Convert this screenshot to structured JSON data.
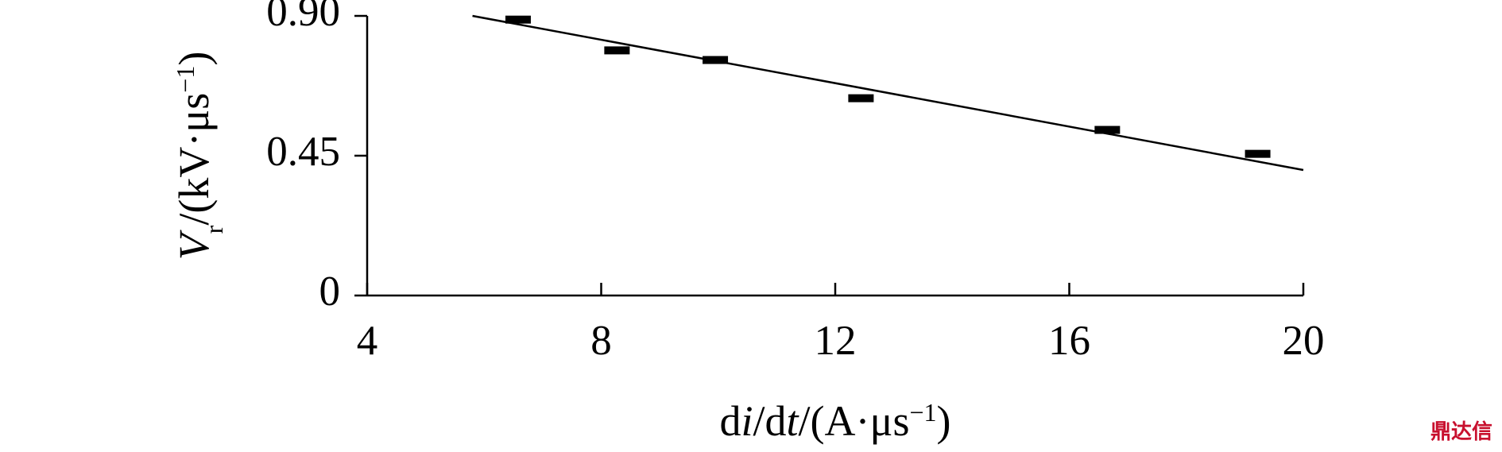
{
  "chart_data": {
    "type": "scatter",
    "x": [
      6.58,
      8.27,
      9.95,
      12.44,
      16.65,
      19.22
    ],
    "values": [
      0.888,
      0.789,
      0.758,
      0.635,
      0.533,
      0.456
    ],
    "color": "#000000",
    "fit_line": {
      "x": [
        5.8,
        20
      ],
      "values": [
        0.9,
        0.404
      ]
    },
    "xlim": [
      4,
      20
    ],
    "xticks": [
      4,
      8,
      12,
      16,
      20
    ],
    "ylim": [
      0,
      0.9
    ],
    "yticks": [
      0,
      {
        "value": 0.45,
        "label": "0.45"
      },
      {
        "value": 0.9,
        "label": "0.90"
      }
    ],
    "xlabel": [
      {
        "t": "d"
      },
      {
        "t": "i",
        "s": "italic"
      },
      {
        "t": "/d"
      },
      {
        "t": "t",
        "s": "italic"
      },
      {
        "t": "/(A·μs"
      },
      {
        "t": "−1",
        "s": "sup"
      },
      {
        "t": ")"
      }
    ],
    "ylabel": [
      {
        "t": "V",
        "s": "italic"
      },
      {
        "t": "r",
        "s": "sub"
      },
      {
        "t": "/(kV·μs"
      },
      {
        "t": "−1",
        "s": "sup"
      },
      {
        "t": ")"
      }
    ],
    "watermark": "鼎达信"
  }
}
